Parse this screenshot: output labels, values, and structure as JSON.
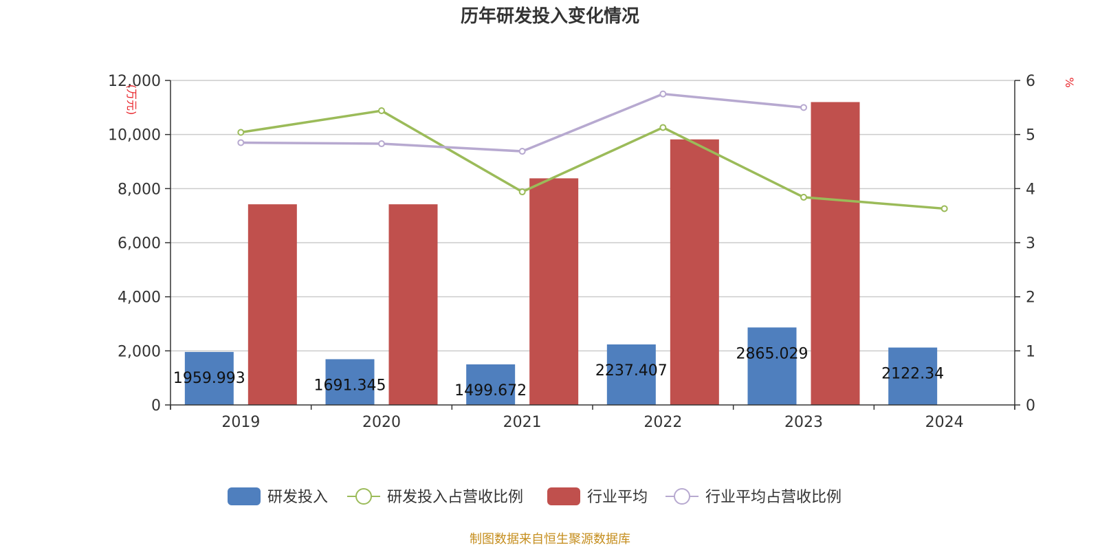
{
  "chart_data": {
    "type": "bar",
    "title": "历年研发投入变化情况",
    "categories": [
      "2019",
      "2020",
      "2021",
      "2022",
      "2023",
      "2024"
    ],
    "y_left": {
      "unit": "(万元)",
      "ylim": [
        0,
        12000
      ],
      "ticks": [
        0,
        2000,
        4000,
        6000,
        8000,
        10000,
        12000
      ],
      "tick_labels": [
        "0",
        "2,000",
        "4,000",
        "6,000",
        "8,000",
        "10,000",
        "12,000"
      ]
    },
    "y_right": {
      "unit": "%",
      "ylim": [
        0,
        6
      ],
      "ticks": [
        0,
        1,
        2,
        3,
        4,
        5,
        6
      ],
      "tick_labels": [
        "0",
        "1",
        "2",
        "3",
        "4",
        "5",
        "6"
      ]
    },
    "grid": true,
    "legend_position": "bottom",
    "series": [
      {
        "name": "研发投入",
        "type": "bar",
        "axis": "left",
        "color": "#4f7fbe",
        "values": [
          1959.993,
          1691.345,
          1499.672,
          2237.407,
          2865.029,
          2122.34
        ],
        "labels": [
          "1959.993",
          "1691.345",
          "1499.672",
          "2237.407",
          "2865.029",
          "2122.34"
        ]
      },
      {
        "name": "研发投入占营收比例",
        "type": "line",
        "axis": "right",
        "color": "#9bbb59",
        "values": [
          5.04,
          5.44,
          3.94,
          5.13,
          3.84,
          3.63
        ]
      },
      {
        "name": "行业平均",
        "type": "bar",
        "axis": "left",
        "color": "#c0504d",
        "values": [
          7420,
          7420,
          8380,
          9820,
          11200,
          null
        ]
      },
      {
        "name": "行业平均占营收比例",
        "type": "line",
        "axis": "right",
        "color": "#b7a9d0",
        "values": [
          4.85,
          4.83,
          4.69,
          5.75,
          5.5,
          null
        ]
      }
    ]
  },
  "source": "制图数据来自恒生聚源数据库"
}
